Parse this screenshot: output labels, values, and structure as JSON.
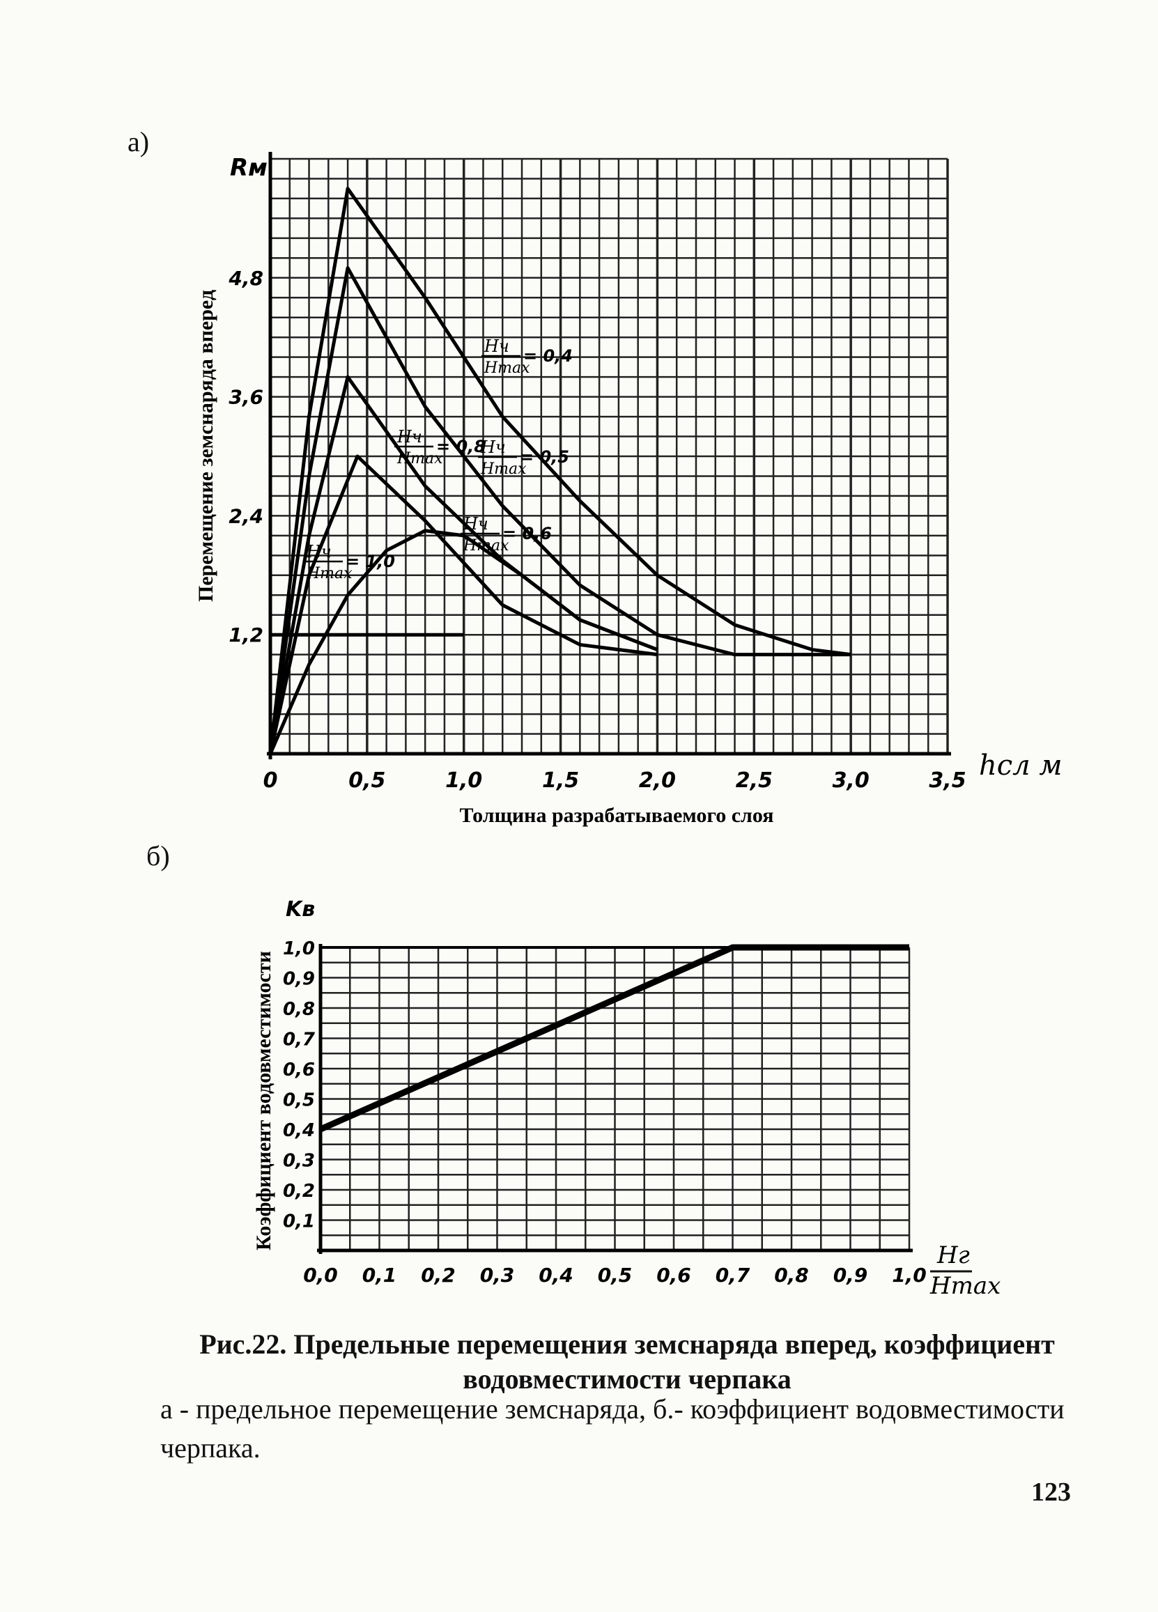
{
  "panels": {
    "a_label": "а)",
    "b_label": "б)"
  },
  "chart_data": [
    {
      "type": "line",
      "title": "",
      "ylabel": "Перемещение земснаряда вперед",
      "xlabel": "Толщина разрабатываемого слоя",
      "y_symbol": "Rм",
      "x_symbol": "hсл м",
      "xlim": [
        0,
        3.5
      ],
      "ylim": [
        0,
        6.0
      ],
      "x_ticks": [
        0,
        0.5,
        1.0,
        1.5,
        2.0,
        2.5,
        3.0,
        3.5
      ],
      "x_tick_labels": [
        "0",
        "0,5",
        "1,0",
        "1,5",
        "2,0",
        "2,5",
        "3,0",
        "3,5"
      ],
      "y_ticks": [
        1.2,
        2.4,
        3.6,
        4.8
      ],
      "y_tick_labels": [
        "1,2",
        "2,4",
        "3,6",
        "4,8"
      ],
      "grid": true,
      "series": [
        {
          "name": "Hч/Hmax = 0,4",
          "label_line1": "Hч",
          "label_line2": "Hmax",
          "label_value": "= 0,4",
          "x": [
            0,
            0.2,
            0.4,
            0.8,
            1.2,
            1.6,
            2.0,
            2.4,
            2.8,
            3.0
          ],
          "y": [
            0,
            3.4,
            5.7,
            4.6,
            3.4,
            2.55,
            1.8,
            1.3,
            1.05,
            1.0
          ]
        },
        {
          "name": "Hч/Hmax = 0,5",
          "label_line1": "Hч",
          "label_line2": "Hmax",
          "label_value": "= 0,5",
          "x": [
            0,
            0.2,
            0.4,
            0.8,
            1.2,
            1.6,
            2.0,
            2.4,
            3.0
          ],
          "y": [
            0,
            2.8,
            4.9,
            3.5,
            2.5,
            1.7,
            1.2,
            1.0,
            1.0
          ]
        },
        {
          "name": "Hч/Hmax = 0,6",
          "label_line1": "Hч",
          "label_line2": "Hmax",
          "label_value": "= 0,6",
          "x": [
            0,
            0.2,
            0.4,
            0.8,
            1.2,
            1.6,
            2.0
          ],
          "y": [
            0,
            2.2,
            3.8,
            2.7,
            1.95,
            1.35,
            1.05
          ]
        },
        {
          "name": "Hч/Hmax = 0,8",
          "label_line1": "Hч",
          "label_line2": "Hmax",
          "label_value": "= 0,8",
          "x": [
            0,
            0.2,
            0.45,
            0.8,
            1.2,
            1.6,
            2.0
          ],
          "y": [
            0,
            1.8,
            3.0,
            2.35,
            1.5,
            1.1,
            1.0
          ]
        },
        {
          "name": "Hч/Hmax = 1,0",
          "label_line1": "Hч",
          "label_line2": "Hmax",
          "label_value": "= 1,0",
          "x": [
            0,
            0.2,
            0.4,
            0.6,
            0.8,
            1.0,
            1.3,
            1.6,
            2.0
          ],
          "y": [
            0,
            0.9,
            1.6,
            2.05,
            2.25,
            2.2,
            1.8,
            1.35,
            1.05
          ]
        }
      ],
      "horizontal_line": {
        "y": 1.2,
        "x_range": [
          0,
          1.0
        ]
      }
    },
    {
      "type": "line",
      "title": "",
      "ylabel": "Коэффициент водовместимости",
      "y_symbol": "Kв",
      "x_symbol_num": "Hг",
      "x_symbol_den": "Hmax",
      "xlim": [
        0,
        1.0
      ],
      "ylim": [
        0,
        1.0
      ],
      "x_ticks": [
        0,
        0.1,
        0.2,
        0.3,
        0.4,
        0.5,
        0.6,
        0.7,
        0.8,
        0.9,
        1.0
      ],
      "x_tick_labels": [
        "0,0",
        "0,1",
        "0,2",
        "0,3",
        "0,4",
        "0,5",
        "0,6",
        "0,7",
        "0,8",
        "0,9",
        "1,0"
      ],
      "y_ticks": [
        0.1,
        0.2,
        0.3,
        0.4,
        0.5,
        0.6,
        0.7,
        0.8,
        0.9,
        1.0
      ],
      "y_tick_labels": [
        "0,1",
        "0,2",
        "0,3",
        "0,4",
        "0,5",
        "0,6",
        "0,7",
        "0,8",
        "0,9",
        "1,0"
      ],
      "grid": true,
      "series": [
        {
          "x": [
            0,
            0.7,
            1.0
          ],
          "y": [
            0.4,
            1.0,
            1.0
          ]
        }
      ]
    }
  ],
  "caption": {
    "title": "Рис.22. Предельные перемещения земснаряда вперед, коэффициент водовместимости черпака",
    "description": "а - предельное перемещение земснаряда, б.- коэффициент водовместимости черпака."
  },
  "page_number": "123"
}
